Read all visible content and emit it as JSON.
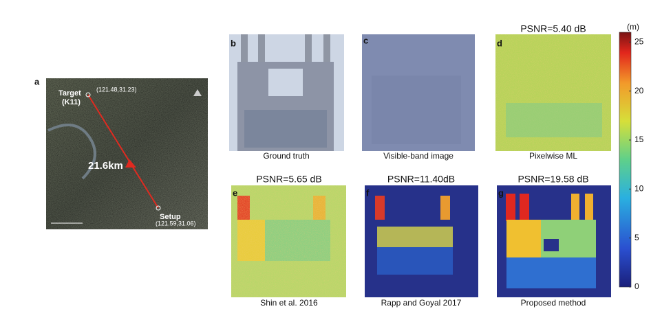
{
  "panel_a": {
    "label": "a",
    "target": "Target",
    "target_id": "(K11)",
    "target_coords": "(121.48,31.23)",
    "distance": "21.6km",
    "setup": "Setup",
    "setup_coords": "(121.59,31.06)"
  },
  "panels": [
    {
      "label": "b",
      "caption": "Ground truth"
    },
    {
      "label": "c",
      "caption": "Visible-band image"
    },
    {
      "label": "d",
      "caption": "Pixelwise ML",
      "title": "PSNR=5.40 dB"
    },
    {
      "label": "e",
      "caption": "Shin et al. 2016",
      "title": "PSNR=5.65 dB"
    },
    {
      "label": "f",
      "caption": "Rapp and Goyal 2017",
      "title": "PSNR=11.40dB"
    },
    {
      "label": "g",
      "caption": "Proposed method",
      "title": "PSNR=19.58 dB"
    }
  ],
  "colorbar": {
    "unit": "(m)",
    "lim": [
      0,
      26
    ],
    "ticks": [
      0,
      5,
      10,
      15,
      20,
      25
    ]
  }
}
